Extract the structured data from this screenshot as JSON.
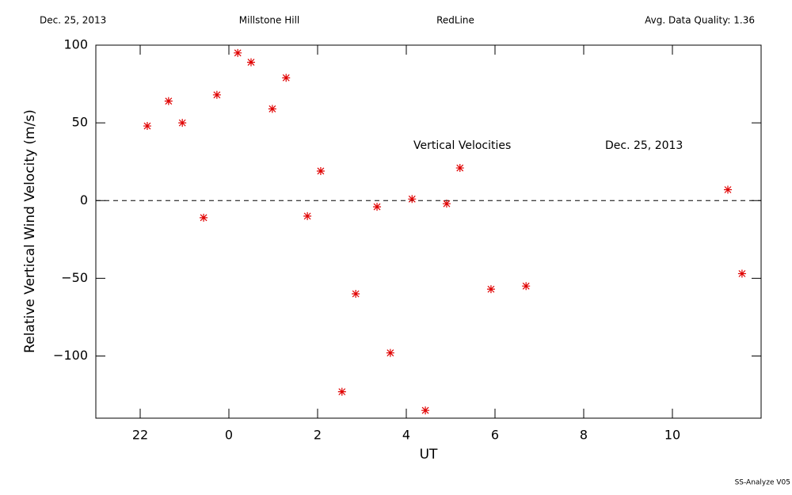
{
  "header": {
    "date": "Dec. 25, 2013",
    "site": "Millstone Hill",
    "instrument": "RedLine",
    "quality": "Avg. Data Quality: 1.36"
  },
  "footer": "SS-Analyze V05",
  "chart_data": {
    "type": "scatter",
    "x_label": "UT",
    "y_label": "Relative Vertical Wind Velocity (m/s)",
    "annotations": [
      "Vertical Velocities",
      "Dec. 25, 2013"
    ],
    "color": "#e00000",
    "x": [
      -1.84,
      -1.36,
      -1.05,
      -0.57,
      -0.27,
      0.2,
      0.5,
      0.98,
      1.29,
      1.77,
      2.07,
      2.55,
      2.86,
      3.34,
      3.64,
      4.13,
      4.43,
      4.91,
      5.21,
      5.91,
      6.7,
      11.25,
      11.57
    ],
    "values": [
      48,
      64,
      50,
      -11,
      68,
      95,
      89,
      59,
      79,
      -10,
      19,
      -123,
      -60,
      -4,
      -98,
      1,
      -135,
      -2,
      21,
      -57,
      -55,
      7,
      -47
    ],
    "xlim": [
      -3,
      12
    ],
    "xticks": [
      {
        "value": -2,
        "label": "22"
      },
      0,
      2,
      4,
      6,
      8,
      10
    ],
    "ylim": [
      -140,
      100
    ],
    "yticks": [
      {
        "value": -100,
        "label": "−100"
      },
      {
        "value": -50,
        "label": "−50"
      },
      0,
      50,
      100
    ]
  }
}
